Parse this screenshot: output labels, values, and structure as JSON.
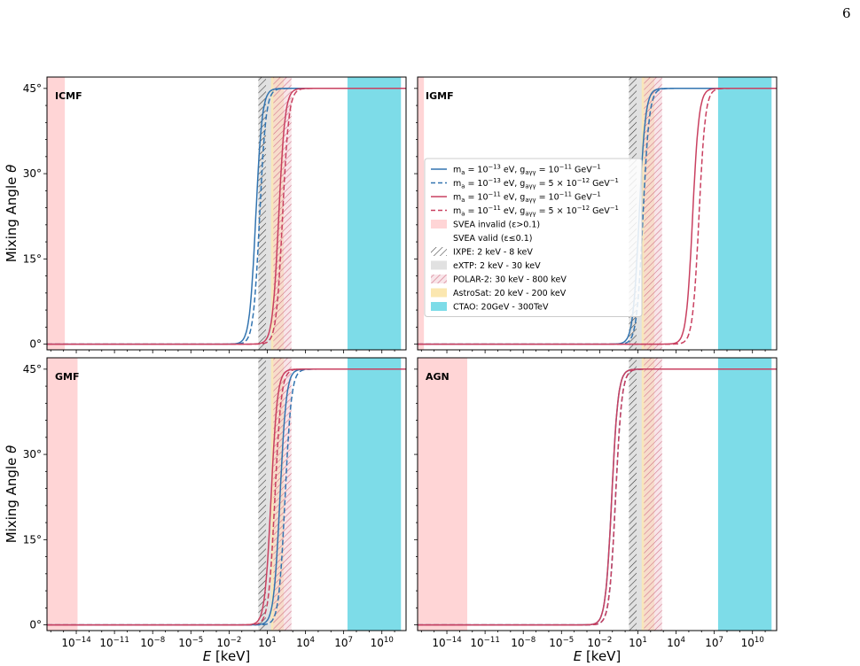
{
  "page_number": "6",
  "figure": {
    "xlabel": "E [keV]",
    "ylabel": "Mixing Angle θ",
    "x_ticks": [
      "10^-14",
      "10^-11",
      "10^-8",
      "10^-5",
      "10^-2",
      "10^1",
      "10^4",
      "10^7",
      "10^10"
    ],
    "y_ticks": [
      "0°",
      "15°",
      "30°",
      "45°"
    ],
    "legend_panel": "IGMF",
    "colors": {
      "series_a": "#3274b0",
      "series_b": "#c94060",
      "svea_invalid": "#ffd5d6",
      "ixpe_hatch": "#333333",
      "extp": "#e1e1e1",
      "polar2_hatch": "#d06e84",
      "polar2_fill": "#f1d0d6",
      "astrosat": "#fbe7b0",
      "ctao": "#7ddce8"
    },
    "legend": [
      {
        "kind": "line",
        "style": "solid",
        "color": "#3274b0",
        "text": "m_a = 10^-13 eV, g_aγγ = 10^-11 GeV^-1"
      },
      {
        "kind": "line",
        "style": "dashed",
        "color": "#3274b0",
        "text": "m_a = 10^-13 eV, g_aγγ = 5 × 10^-12 GeV^-1"
      },
      {
        "kind": "line",
        "style": "solid",
        "color": "#c94060",
        "text": "m_a = 10^-11 eV, g_aγγ = 10^-11 GeV^-1"
      },
      {
        "kind": "line",
        "style": "dashed",
        "color": "#c94060",
        "text": "m_a = 10^-11 eV, g_aγγ = 5 × 10^-12 GeV^-1"
      },
      {
        "kind": "patch",
        "patch": "svea",
        "text": "SVEA invalid (ε>0.1)"
      },
      {
        "kind": "empty",
        "text": "SVEA valid (ε≤0.1)"
      },
      {
        "kind": "patch",
        "patch": "ixpe",
        "text": "IXPE: 2 keV - 8 keV"
      },
      {
        "kind": "patch",
        "patch": "extp",
        "text": "eXTP: 2 keV - 30 keV"
      },
      {
        "kind": "patch",
        "patch": "polar",
        "text": "POLAR-2: 30 keV - 800 keV"
      },
      {
        "kind": "patch",
        "patch": "astrosat",
        "text": "AstroSat: 20 keV - 200 keV"
      },
      {
        "kind": "patch",
        "patch": "ctao",
        "text": "CTAO: 20GeV - 300TeV"
      }
    ]
  },
  "chart_data": [
    {
      "type": "line",
      "panel": "ICMF",
      "xlabel": "",
      "ylabel": "Mixing Angle θ",
      "x_scale": "log",
      "xlim_log10": [
        -16.3,
        11.9
      ],
      "ylim_deg": [
        -1,
        47
      ],
      "bands": [
        {
          "name": "SVEA invalid (ε>0.1)",
          "x_from_log10": -16.3,
          "x_to_log10": -14.9
        },
        {
          "name": "IXPE",
          "x_from_log10": 0.3,
          "x_to_log10": 0.9
        },
        {
          "name": "eXTP",
          "x_from_log10": 0.3,
          "x_to_log10": 1.48
        },
        {
          "name": "POLAR-2",
          "x_from_log10": 1.48,
          "x_to_log10": 2.9
        },
        {
          "name": "AstroSat",
          "x_from_log10": 1.3,
          "x_to_log10": 2.3
        },
        {
          "name": "CTAO",
          "x_from_log10": 7.3,
          "x_to_log10": 11.5
        }
      ],
      "series": [
        {
          "color": "#3274b0",
          "dash": false,
          "midpoint_log10_keV": 0.1,
          "plateau_deg": 45
        },
        {
          "color": "#3274b0",
          "dash": true,
          "midpoint_log10_keV": 0.4,
          "plateau_deg": 45
        },
        {
          "color": "#c94060",
          "dash": false,
          "midpoint_log10_keV": 1.9,
          "plateau_deg": 45
        },
        {
          "color": "#c94060",
          "dash": true,
          "midpoint_log10_keV": 2.2,
          "plateau_deg": 45
        }
      ]
    },
    {
      "type": "line",
      "panel": "IGMF",
      "xlabel": "",
      "ylabel": "",
      "x_scale": "log",
      "xlim_log10": [
        -16.3,
        11.9
      ],
      "ylim_deg": [
        -1,
        47
      ],
      "bands": [
        {
          "name": "SVEA invalid (ε>0.1)",
          "x_from_log10": -16.3,
          "x_to_log10": -15.8
        },
        {
          "name": "IXPE",
          "x_from_log10": 0.3,
          "x_to_log10": 0.9
        },
        {
          "name": "eXTP",
          "x_from_log10": 0.3,
          "x_to_log10": 1.48
        },
        {
          "name": "POLAR-2",
          "x_from_log10": 1.48,
          "x_to_log10": 2.9
        },
        {
          "name": "AstroSat",
          "x_from_log10": 1.3,
          "x_to_log10": 2.3
        },
        {
          "name": "CTAO",
          "x_from_log10": 7.3,
          "x_to_log10": 11.5
        }
      ],
      "series": [
        {
          "color": "#3274b0",
          "dash": false,
          "midpoint_log10_keV": 1.1,
          "plateau_deg": 45
        },
        {
          "color": "#3274b0",
          "dash": true,
          "midpoint_log10_keV": 1.4,
          "plateau_deg": 45
        },
        {
          "color": "#c94060",
          "dash": false,
          "midpoint_log10_keV": 5.3,
          "plateau_deg": 45
        },
        {
          "color": "#c94060",
          "dash": true,
          "midpoint_log10_keV": 5.8,
          "plateau_deg": 45
        }
      ]
    },
    {
      "type": "line",
      "panel": "GMF",
      "xlabel": "E [keV]",
      "ylabel": "Mixing Angle θ",
      "x_scale": "log",
      "xlim_log10": [
        -16.3,
        11.9
      ],
      "ylim_deg": [
        -1,
        47
      ],
      "bands": [
        {
          "name": "SVEA invalid (ε>0.1)",
          "x_from_log10": -16.3,
          "x_to_log10": -13.9
        },
        {
          "name": "IXPE",
          "x_from_log10": 0.3,
          "x_to_log10": 0.9
        },
        {
          "name": "eXTP",
          "x_from_log10": 0.3,
          "x_to_log10": 1.48
        },
        {
          "name": "POLAR-2",
          "x_from_log10": 1.48,
          "x_to_log10": 2.9
        },
        {
          "name": "AstroSat",
          "x_from_log10": 1.3,
          "x_to_log10": 2.3
        },
        {
          "name": "CTAO",
          "x_from_log10": 7.3,
          "x_to_log10": 11.5
        }
      ],
      "series": [
        {
          "color": "#3274b0",
          "dash": false,
          "midpoint_log10_keV": 2.0,
          "plateau_deg": 45
        },
        {
          "color": "#3274b0",
          "dash": true,
          "midpoint_log10_keV": 2.4,
          "plateau_deg": 45
        },
        {
          "color": "#c94060",
          "dash": false,
          "midpoint_log10_keV": 1.3,
          "plateau_deg": 45
        },
        {
          "color": "#c94060",
          "dash": true,
          "midpoint_log10_keV": 1.6,
          "plateau_deg": 45
        }
      ]
    },
    {
      "type": "line",
      "panel": "AGN",
      "xlabel": "E [keV]",
      "ylabel": "",
      "x_scale": "log",
      "xlim_log10": [
        -16.3,
        11.9
      ],
      "ylim_deg": [
        -1,
        47
      ],
      "bands": [
        {
          "name": "SVEA invalid (ε>0.1)",
          "x_from_log10": -16.3,
          "x_to_log10": -12.4
        },
        {
          "name": "IXPE",
          "x_from_log10": 0.3,
          "x_to_log10": 0.9
        },
        {
          "name": "eXTP",
          "x_from_log10": 0.3,
          "x_to_log10": 1.48
        },
        {
          "name": "POLAR-2",
          "x_from_log10": 1.48,
          "x_to_log10": 2.9
        },
        {
          "name": "AstroSat",
          "x_from_log10": 1.3,
          "x_to_log10": 2.3
        },
        {
          "name": "CTAO",
          "x_from_log10": 7.3,
          "x_to_log10": 11.5
        }
      ],
      "series": [
        {
          "color": "#3274b0",
          "dash": false,
          "midpoint_log10_keV": -1.05,
          "plateau_deg": 45
        },
        {
          "color": "#3274b0",
          "dash": true,
          "midpoint_log10_keV": -0.75,
          "plateau_deg": 45
        },
        {
          "color": "#c94060",
          "dash": false,
          "midpoint_log10_keV": -1.05,
          "plateau_deg": 45
        },
        {
          "color": "#c94060",
          "dash": true,
          "midpoint_log10_keV": -0.75,
          "plateau_deg": 45
        }
      ]
    }
  ]
}
